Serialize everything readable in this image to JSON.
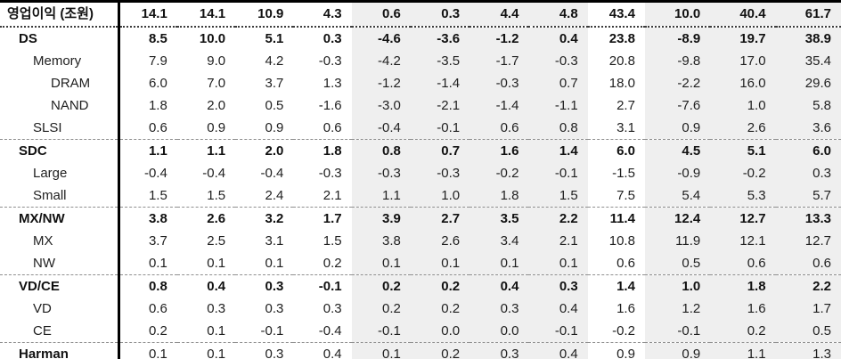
{
  "table": {
    "title_label": "영업이익 (조원)",
    "header_values": [
      "14.1",
      "14.1",
      "10.9",
      "4.3",
      "0.6",
      "0.3",
      "4.4",
      "4.8",
      "43.4",
      "10.0",
      "40.4",
      "61.7"
    ],
    "rows": [
      {
        "label": "DS",
        "indent": 1,
        "bold": true,
        "section_start": true,
        "values": [
          "8.5",
          "10.0",
          "5.1",
          "0.3",
          "-4.6",
          "-3.6",
          "-1.2",
          "0.4",
          "23.8",
          "-8.9",
          "19.7",
          "38.9"
        ]
      },
      {
        "label": "Memory",
        "indent": 2,
        "bold": false,
        "section_start": false,
        "values": [
          "7.9",
          "9.0",
          "4.2",
          "-0.3",
          "-4.2",
          "-3.5",
          "-1.7",
          "-0.3",
          "20.8",
          "-9.8",
          "17.0",
          "35.4"
        ]
      },
      {
        "label": "DRAM",
        "indent": 3,
        "bold": false,
        "section_start": false,
        "values": [
          "6.0",
          "7.0",
          "3.7",
          "1.3",
          "-1.2",
          "-1.4",
          "-0.3",
          "0.7",
          "18.0",
          "-2.2",
          "16.0",
          "29.6"
        ]
      },
      {
        "label": "NAND",
        "indent": 3,
        "bold": false,
        "section_start": false,
        "values": [
          "1.8",
          "2.0",
          "0.5",
          "-1.6",
          "-3.0",
          "-2.1",
          "-1.4",
          "-1.1",
          "2.7",
          "-7.6",
          "1.0",
          "5.8"
        ]
      },
      {
        "label": "SLSI",
        "indent": 2,
        "bold": false,
        "section_start": false,
        "values": [
          "0.6",
          "0.9",
          "0.9",
          "0.6",
          "-0.4",
          "-0.1",
          "0.6",
          "0.8",
          "3.1",
          "0.9",
          "2.6",
          "3.6"
        ]
      },
      {
        "label": "SDC",
        "indent": 1,
        "bold": true,
        "section_start": true,
        "values": [
          "1.1",
          "1.1",
          "2.0",
          "1.8",
          "0.8",
          "0.7",
          "1.6",
          "1.4",
          "6.0",
          "4.5",
          "5.1",
          "6.0"
        ]
      },
      {
        "label": "Large",
        "indent": 2,
        "bold": false,
        "section_start": false,
        "values": [
          "-0.4",
          "-0.4",
          "-0.4",
          "-0.3",
          "-0.3",
          "-0.3",
          "-0.2",
          "-0.1",
          "-1.5",
          "-0.9",
          "-0.2",
          "0.3"
        ]
      },
      {
        "label": "Small",
        "indent": 2,
        "bold": false,
        "section_start": false,
        "values": [
          "1.5",
          "1.5",
          "2.4",
          "2.1",
          "1.1",
          "1.0",
          "1.8",
          "1.5",
          "7.5",
          "5.4",
          "5.3",
          "5.7"
        ]
      },
      {
        "label": "MX/NW",
        "indent": 1,
        "bold": true,
        "section_start": true,
        "values": [
          "3.8",
          "2.6",
          "3.2",
          "1.7",
          "3.9",
          "2.7",
          "3.5",
          "2.2",
          "11.4",
          "12.4",
          "12.7",
          "13.3"
        ]
      },
      {
        "label": "MX",
        "indent": 2,
        "bold": false,
        "section_start": false,
        "values": [
          "3.7",
          "2.5",
          "3.1",
          "1.5",
          "3.8",
          "2.6",
          "3.4",
          "2.1",
          "10.8",
          "11.9",
          "12.1",
          "12.7"
        ]
      },
      {
        "label": "NW",
        "indent": 2,
        "bold": false,
        "section_start": false,
        "values": [
          "0.1",
          "0.1",
          "0.1",
          "0.2",
          "0.1",
          "0.1",
          "0.1",
          "0.1",
          "0.6",
          "0.5",
          "0.6",
          "0.6"
        ]
      },
      {
        "label": "VD/CE",
        "indent": 1,
        "bold": true,
        "section_start": true,
        "values": [
          "0.8",
          "0.4",
          "0.3",
          "-0.1",
          "0.2",
          "0.2",
          "0.4",
          "0.3",
          "1.4",
          "1.0",
          "1.8",
          "2.2"
        ]
      },
      {
        "label": "VD",
        "indent": 2,
        "bold": false,
        "section_start": false,
        "values": [
          "0.6",
          "0.3",
          "0.3",
          "0.3",
          "0.2",
          "0.2",
          "0.3",
          "0.4",
          "1.6",
          "1.2",
          "1.6",
          "1.7"
        ]
      },
      {
        "label": "CE",
        "indent": 2,
        "bold": false,
        "section_start": false,
        "values": [
          "0.2",
          "0.1",
          "-0.1",
          "-0.4",
          "-0.1",
          "0.0",
          "0.0",
          "-0.1",
          "-0.2",
          "-0.1",
          "0.2",
          "0.5"
        ]
      },
      {
        "label": "Harman",
        "indent": 1,
        "bold": false,
        "bold_label_only": true,
        "section_start": true,
        "values": [
          "0.1",
          "0.1",
          "0.3",
          "0.4",
          "0.1",
          "0.2",
          "0.3",
          "0.4",
          "0.9",
          "0.9",
          "1.1",
          "1.3"
        ]
      }
    ],
    "shaded_columns": [
      5,
      6,
      7,
      8,
      10,
      11,
      12
    ],
    "colors": {
      "shade": "#efefef",
      "border": "#000000",
      "text": "#1f1f1f"
    }
  }
}
